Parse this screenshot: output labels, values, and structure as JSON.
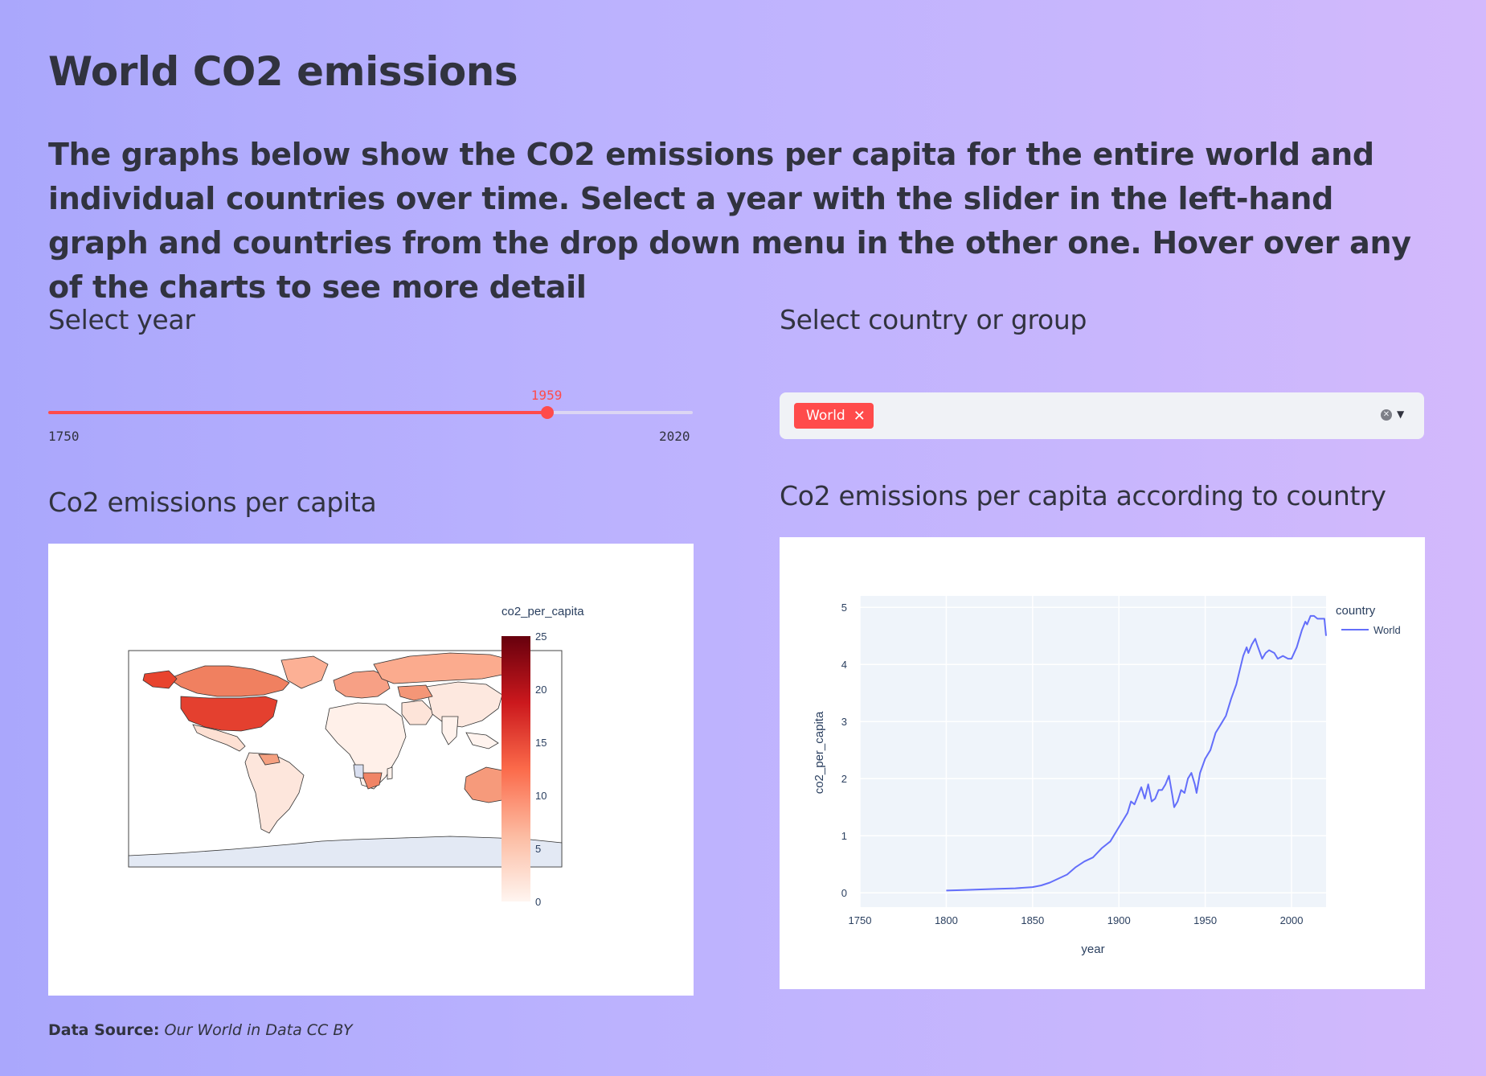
{
  "page": {
    "title": "World CO2 emissions",
    "intro": "The graphs below show the CO2 emissions per capita for the entire world and individual countries over time. Select a year with the slider in the left-hand graph and countries from the drop down menu in the other one. Hover over any of the charts to see more detail"
  },
  "year_selector": {
    "label": "Select year",
    "value": 1959,
    "min": 1750,
    "max": 2020,
    "value_text": "1959",
    "min_text": "1750",
    "max_text": "2020",
    "accent": "#ff4b4b"
  },
  "country_selector": {
    "label": "Select country or group",
    "selected": [
      "World"
    ],
    "remove_icon": "close-icon",
    "clear_icon": "clear-circle-icon",
    "dropdown_icon": "caret-down-icon"
  },
  "map_chart": {
    "heading": "Co2 emissions per capita",
    "colorbar_title": "co2_per_capita",
    "colorbar_ticks": [
      "0",
      "5",
      "10",
      "15",
      "20",
      "25"
    ],
    "colors": [
      "#fff5f0",
      "#fcbba1",
      "#fb6a4a",
      "#cb181d",
      "#67000d"
    ]
  },
  "line_chart": {
    "heading": "Co2 emissions per capita according to country"
  },
  "chart_data": {
    "type": "line",
    "xlabel": "year",
    "ylabel": "co2_per_capita",
    "xlim": [
      1750,
      2020
    ],
    "ylim": [
      0,
      5
    ],
    "xticks": [
      "1750",
      "1800",
      "1850",
      "1900",
      "1950",
      "2000"
    ],
    "yticks": [
      "0",
      "1",
      "2",
      "3",
      "4",
      "5"
    ],
    "legend_title": "country",
    "legend_position": "top-right",
    "grid": true,
    "series": [
      {
        "name": "World",
        "color": "#636efa",
        "x": [
          1800,
          1810,
          1820,
          1830,
          1840,
          1850,
          1855,
          1860,
          1865,
          1870,
          1875,
          1880,
          1885,
          1890,
          1895,
          1900,
          1905,
          1907,
          1909,
          1911,
          1913,
          1915,
          1917,
          1919,
          1921,
          1923,
          1925,
          1927,
          1929,
          1931,
          1932,
          1934,
          1936,
          1938,
          1940,
          1942,
          1944,
          1945,
          1947,
          1950,
          1953,
          1956,
          1959,
          1962,
          1965,
          1968,
          1970,
          1972,
          1974,
          1975,
          1977,
          1979,
          1980,
          1983,
          1985,
          1987,
          1990,
          1992,
          1995,
          1998,
          2000,
          2003,
          2006,
          2008,
          2009,
          2011,
          2013,
          2015,
          2017,
          2019,
          2020
        ],
        "y": [
          0.04,
          0.05,
          0.06,
          0.07,
          0.08,
          0.1,
          0.13,
          0.18,
          0.25,
          0.32,
          0.45,
          0.55,
          0.62,
          0.78,
          0.9,
          1.15,
          1.4,
          1.6,
          1.55,
          1.7,
          1.85,
          1.65,
          1.9,
          1.6,
          1.65,
          1.8,
          1.8,
          1.9,
          2.05,
          1.7,
          1.5,
          1.6,
          1.8,
          1.75,
          2.0,
          2.1,
          1.9,
          1.75,
          2.1,
          2.35,
          2.5,
          2.8,
          2.95,
          3.1,
          3.4,
          3.65,
          3.9,
          4.15,
          4.3,
          4.2,
          4.35,
          4.45,
          4.35,
          4.1,
          4.2,
          4.25,
          4.2,
          4.1,
          4.15,
          4.1,
          4.1,
          4.3,
          4.6,
          4.75,
          4.7,
          4.85,
          4.85,
          4.8,
          4.8,
          4.8,
          4.5
        ]
      }
    ]
  }
}
